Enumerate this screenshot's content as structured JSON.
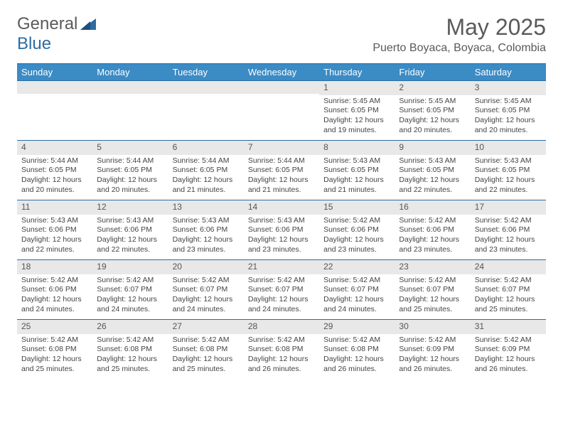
{
  "logo": {
    "word1": "General",
    "word2": "Blue"
  },
  "title": "May 2025",
  "location": "Puerto Boyaca, Boyaca, Colombia",
  "header_bg": "#3b8bc5",
  "day_names": [
    "Sunday",
    "Monday",
    "Tuesday",
    "Wednesday",
    "Thursday",
    "Friday",
    "Saturday"
  ],
  "weeks": [
    [
      null,
      null,
      null,
      null,
      {
        "n": "1",
        "sr": "5:45 AM",
        "ss": "6:05 PM",
        "dl": "12 hours and 19 minutes."
      },
      {
        "n": "2",
        "sr": "5:45 AM",
        "ss": "6:05 PM",
        "dl": "12 hours and 20 minutes."
      },
      {
        "n": "3",
        "sr": "5:45 AM",
        "ss": "6:05 PM",
        "dl": "12 hours and 20 minutes."
      }
    ],
    [
      {
        "n": "4",
        "sr": "5:44 AM",
        "ss": "6:05 PM",
        "dl": "12 hours and 20 minutes."
      },
      {
        "n": "5",
        "sr": "5:44 AM",
        "ss": "6:05 PM",
        "dl": "12 hours and 20 minutes."
      },
      {
        "n": "6",
        "sr": "5:44 AM",
        "ss": "6:05 PM",
        "dl": "12 hours and 21 minutes."
      },
      {
        "n": "7",
        "sr": "5:44 AM",
        "ss": "6:05 PM",
        "dl": "12 hours and 21 minutes."
      },
      {
        "n": "8",
        "sr": "5:43 AM",
        "ss": "6:05 PM",
        "dl": "12 hours and 21 minutes."
      },
      {
        "n": "9",
        "sr": "5:43 AM",
        "ss": "6:05 PM",
        "dl": "12 hours and 22 minutes."
      },
      {
        "n": "10",
        "sr": "5:43 AM",
        "ss": "6:05 PM",
        "dl": "12 hours and 22 minutes."
      }
    ],
    [
      {
        "n": "11",
        "sr": "5:43 AM",
        "ss": "6:06 PM",
        "dl": "12 hours and 22 minutes."
      },
      {
        "n": "12",
        "sr": "5:43 AM",
        "ss": "6:06 PM",
        "dl": "12 hours and 22 minutes."
      },
      {
        "n": "13",
        "sr": "5:43 AM",
        "ss": "6:06 PM",
        "dl": "12 hours and 23 minutes."
      },
      {
        "n": "14",
        "sr": "5:43 AM",
        "ss": "6:06 PM",
        "dl": "12 hours and 23 minutes."
      },
      {
        "n": "15",
        "sr": "5:42 AM",
        "ss": "6:06 PM",
        "dl": "12 hours and 23 minutes."
      },
      {
        "n": "16",
        "sr": "5:42 AM",
        "ss": "6:06 PM",
        "dl": "12 hours and 23 minutes."
      },
      {
        "n": "17",
        "sr": "5:42 AM",
        "ss": "6:06 PM",
        "dl": "12 hours and 23 minutes."
      }
    ],
    [
      {
        "n": "18",
        "sr": "5:42 AM",
        "ss": "6:06 PM",
        "dl": "12 hours and 24 minutes."
      },
      {
        "n": "19",
        "sr": "5:42 AM",
        "ss": "6:07 PM",
        "dl": "12 hours and 24 minutes."
      },
      {
        "n": "20",
        "sr": "5:42 AM",
        "ss": "6:07 PM",
        "dl": "12 hours and 24 minutes."
      },
      {
        "n": "21",
        "sr": "5:42 AM",
        "ss": "6:07 PM",
        "dl": "12 hours and 24 minutes."
      },
      {
        "n": "22",
        "sr": "5:42 AM",
        "ss": "6:07 PM",
        "dl": "12 hours and 24 minutes."
      },
      {
        "n": "23",
        "sr": "5:42 AM",
        "ss": "6:07 PM",
        "dl": "12 hours and 25 minutes."
      },
      {
        "n": "24",
        "sr": "5:42 AM",
        "ss": "6:07 PM",
        "dl": "12 hours and 25 minutes."
      }
    ],
    [
      {
        "n": "25",
        "sr": "5:42 AM",
        "ss": "6:08 PM",
        "dl": "12 hours and 25 minutes."
      },
      {
        "n": "26",
        "sr": "5:42 AM",
        "ss": "6:08 PM",
        "dl": "12 hours and 25 minutes."
      },
      {
        "n": "27",
        "sr": "5:42 AM",
        "ss": "6:08 PM",
        "dl": "12 hours and 25 minutes."
      },
      {
        "n": "28",
        "sr": "5:42 AM",
        "ss": "6:08 PM",
        "dl": "12 hours and 26 minutes."
      },
      {
        "n": "29",
        "sr": "5:42 AM",
        "ss": "6:08 PM",
        "dl": "12 hours and 26 minutes."
      },
      {
        "n": "30",
        "sr": "5:42 AM",
        "ss": "6:09 PM",
        "dl": "12 hours and 26 minutes."
      },
      {
        "n": "31",
        "sr": "5:42 AM",
        "ss": "6:09 PM",
        "dl": "12 hours and 26 minutes."
      }
    ]
  ],
  "labels": {
    "sunrise": "Sunrise: ",
    "sunset": "Sunset: ",
    "daylight": "Daylight: "
  }
}
